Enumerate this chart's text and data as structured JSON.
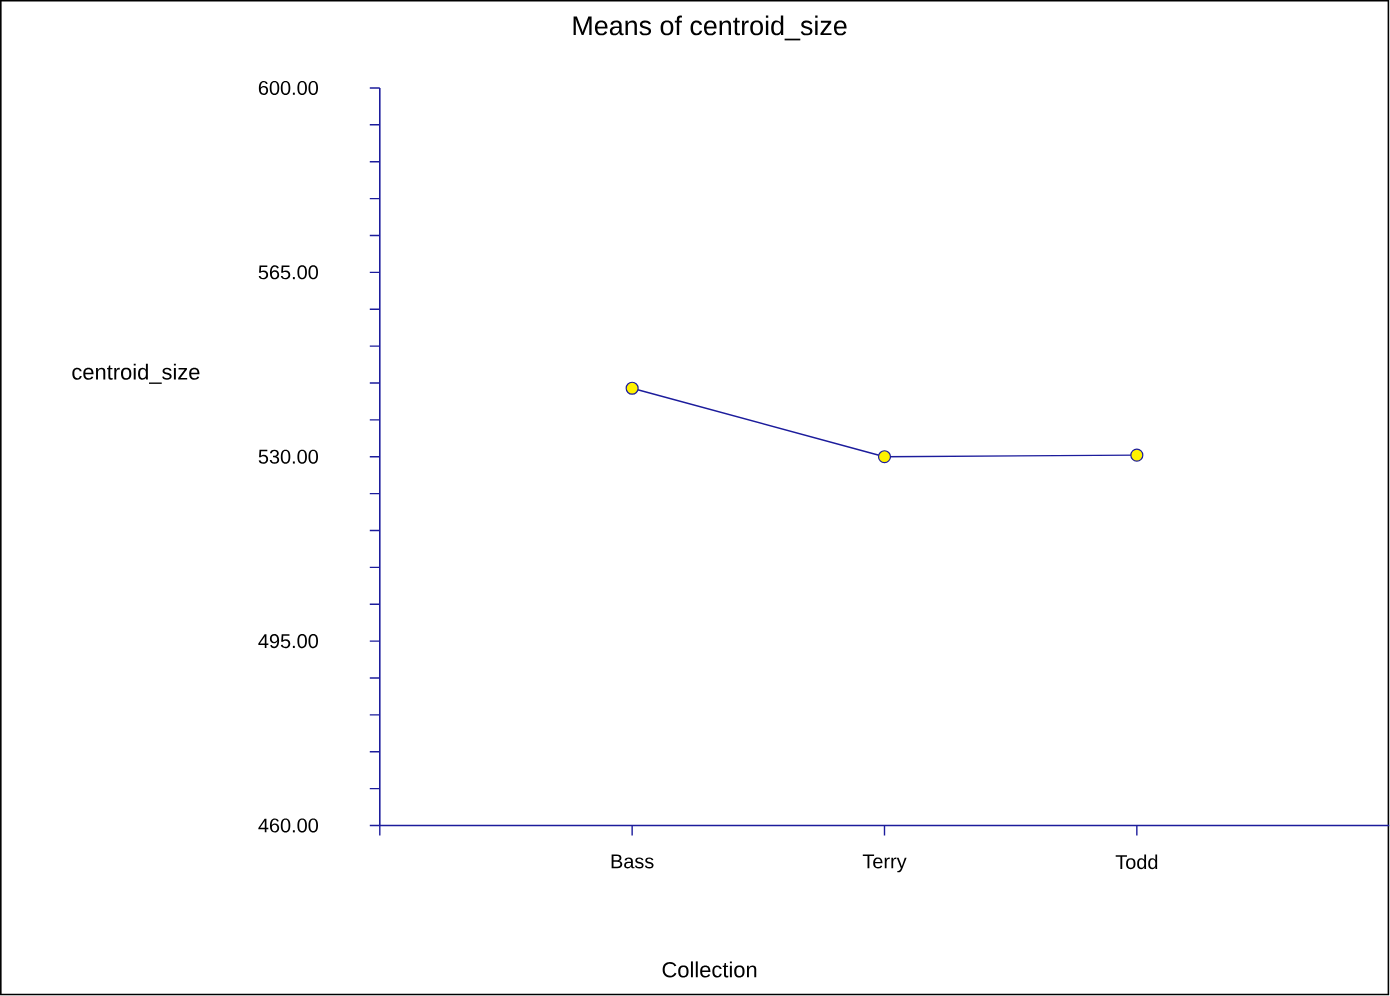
{
  "chart_data": {
    "type": "line",
    "title": "Means of centroid_size",
    "xlabel": "Collection",
    "ylabel": "centroid_size",
    "categories": [
      "Bass",
      "Terry",
      "Todd"
    ],
    "series": [
      {
        "color": "#1c1c9c",
        "values": [
          543.0,
          530.0,
          530.3
        ]
      }
    ],
    "marker": "circle",
    "line_style": "solid",
    "grid": false,
    "ylim": [
      460,
      600
    ],
    "yticks": [
      {
        "value": 460,
        "label": "460.00"
      },
      {
        "value": 467,
        "label": null
      },
      {
        "value": 474,
        "label": null
      },
      {
        "value": 481,
        "label": null
      },
      {
        "value": 488,
        "label": null
      },
      {
        "value": 495,
        "label": "495.00"
      },
      {
        "value": 502,
        "label": null
      },
      {
        "value": 509,
        "label": null
      },
      {
        "value": 516,
        "label": null
      },
      {
        "value": 523,
        "label": null
      },
      {
        "value": 530,
        "label": "530.00"
      },
      {
        "value": 537,
        "label": null
      },
      {
        "value": 544,
        "label": null
      },
      {
        "value": 551,
        "label": null
      },
      {
        "value": 558,
        "label": null
      },
      {
        "value": 565,
        "label": "565.00"
      },
      {
        "value": 572,
        "label": null
      },
      {
        "value": 579,
        "label": null
      },
      {
        "value": 586,
        "label": null
      },
      {
        "value": 593,
        "label": null
      },
      {
        "value": 600,
        "label": "600.00"
      }
    ]
  }
}
